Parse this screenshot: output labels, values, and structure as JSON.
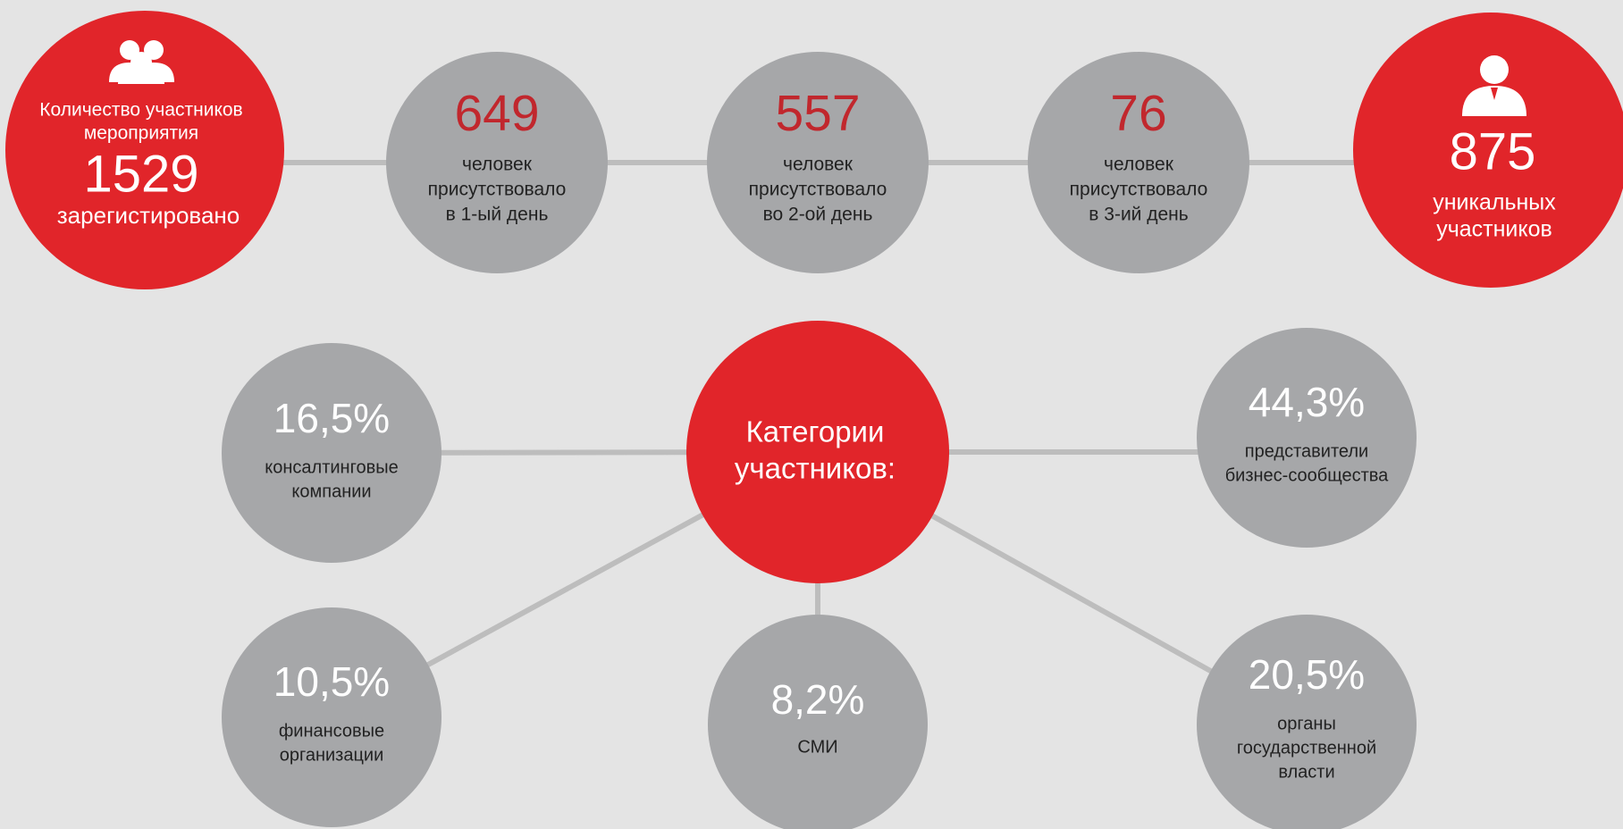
{
  "top": {
    "registered": {
      "label": [
        "Количество участников",
        "мероприятия"
      ],
      "value": "1529",
      "caption": "зарегистировано"
    },
    "days": [
      {
        "value": "649",
        "lines": [
          "человек",
          "присутствовало",
          "в 1-ый день"
        ]
      },
      {
        "value": "557",
        "lines": [
          "человек",
          "присутствовало",
          "во 2-ой день"
        ]
      },
      {
        "value": "76",
        "lines": [
          "человек",
          "присутствовало",
          "в 3-ий день"
        ]
      }
    ],
    "unique": {
      "value": "875",
      "lines": [
        "уникальных",
        "участников"
      ]
    }
  },
  "categories": {
    "title": [
      "Категории",
      "участников:"
    ],
    "items": [
      {
        "value": "16,5%",
        "lines": [
          "консалтинговые",
          "компании"
        ]
      },
      {
        "value": "44,3%",
        "lines": [
          "представители",
          "бизнес-сообщества"
        ]
      },
      {
        "value": "10,5%",
        "lines": [
          "финансовые",
          "организации"
        ]
      },
      {
        "value": "8,2%",
        "lines": [
          "СМИ"
        ]
      },
      {
        "value": "20,5%",
        "lines": [
          "органы",
          "государственной",
          "власти"
        ]
      }
    ]
  }
}
